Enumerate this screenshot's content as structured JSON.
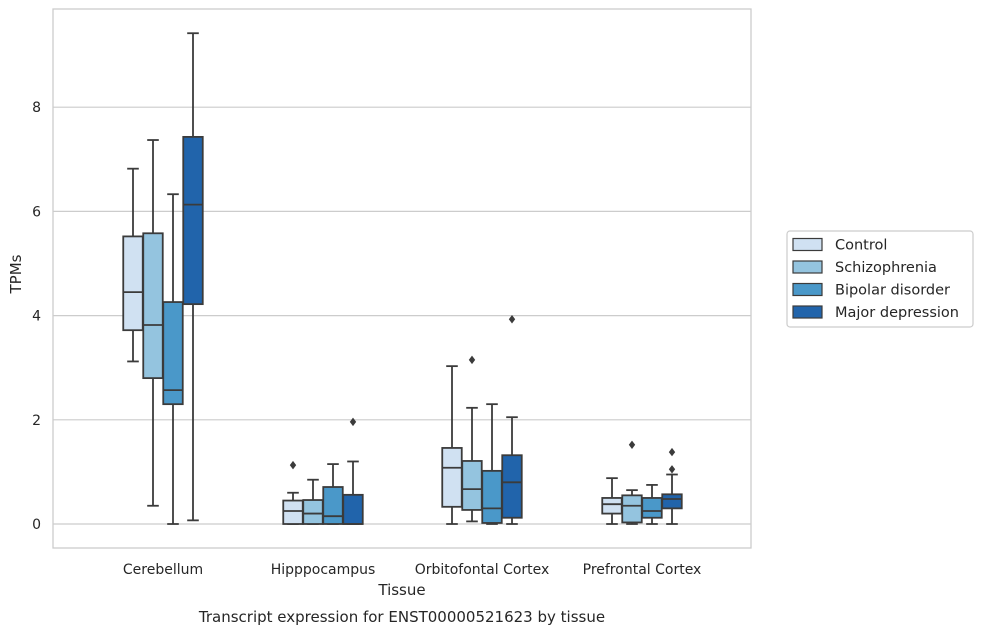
{
  "chart_data": {
    "type": "box",
    "xlabel": "Tissue",
    "ylabel": "TPMs",
    "caption": "Transcript expression for ENST00000521623 by tissue",
    "categories": [
      "Cerebellum",
      "Hipppocampus",
      "Orbitofontal Cortex",
      "Prefrontal Cortex"
    ],
    "ylim": [
      -0.45,
      9.9
    ],
    "yticks": [
      0,
      2,
      4,
      6,
      8
    ],
    "grid": "horizontal",
    "legend_position": "right",
    "series": [
      {
        "name": "Control",
        "color": "#d0e1f2",
        "boxes": [
          {
            "whislo": 3.12,
            "q1": 3.72,
            "med": 4.45,
            "q3": 5.52,
            "whishi": 6.82,
            "fliers": []
          },
          {
            "whislo": 0.0,
            "q1": 0.0,
            "med": 0.25,
            "q3": 0.45,
            "whishi": 0.6,
            "fliers": [
              1.13
            ]
          },
          {
            "whislo": 0.0,
            "q1": 0.33,
            "med": 1.08,
            "q3": 1.46,
            "whishi": 3.03,
            "fliers": []
          },
          {
            "whislo": 0.0,
            "q1": 0.2,
            "med": 0.38,
            "q3": 0.5,
            "whishi": 0.88,
            "fliers": []
          }
        ]
      },
      {
        "name": "Schizophrenia",
        "color": "#94c4df",
        "boxes": [
          {
            "whislo": 0.35,
            "q1": 2.8,
            "med": 3.82,
            "q3": 5.58,
            "whishi": 7.37,
            "fliers": []
          },
          {
            "whislo": 0.0,
            "q1": 0.0,
            "med": 0.2,
            "q3": 0.46,
            "whishi": 0.85,
            "fliers": []
          },
          {
            "whislo": 0.05,
            "q1": 0.27,
            "med": 0.67,
            "q3": 1.21,
            "whishi": 2.23,
            "fliers": [
              3.15
            ]
          },
          {
            "whislo": 0.0,
            "q1": 0.03,
            "med": 0.35,
            "q3": 0.55,
            "whishi": 0.65,
            "fliers": [
              1.52
            ]
          }
        ]
      },
      {
        "name": "Bipolar disorder",
        "color": "#4a98c9",
        "boxes": [
          {
            "whislo": 0.0,
            "q1": 2.3,
            "med": 2.57,
            "q3": 4.26,
            "whishi": 6.33,
            "fliers": []
          },
          {
            "whislo": 0.0,
            "q1": 0.0,
            "med": 0.15,
            "q3": 0.71,
            "whishi": 1.15,
            "fliers": []
          },
          {
            "whislo": 0.0,
            "q1": 0.02,
            "med": 0.3,
            "q3": 1.02,
            "whishi": 2.3,
            "fliers": []
          },
          {
            "whislo": 0.0,
            "q1": 0.12,
            "med": 0.25,
            "q3": 0.5,
            "whishi": 0.75,
            "fliers": []
          }
        ]
      },
      {
        "name": "Major depression",
        "color": "#2164ab",
        "boxes": [
          {
            "whislo": 0.07,
            "q1": 4.22,
            "med": 6.13,
            "q3": 7.43,
            "whishi": 9.42,
            "fliers": []
          },
          {
            "whislo": 0.0,
            "q1": 0.0,
            "med": 0.0,
            "q3": 0.56,
            "whishi": 1.2,
            "fliers": [
              1.96
            ]
          },
          {
            "whislo": 0.0,
            "q1": 0.12,
            "med": 0.8,
            "q3": 1.32,
            "whishi": 2.05,
            "fliers": [
              3.93
            ]
          },
          {
            "whislo": 0.0,
            "q1": 0.3,
            "med": 0.48,
            "q3": 0.57,
            "whishi": 0.95,
            "fliers": [
              1.05,
              1.38
            ]
          }
        ]
      }
    ]
  }
}
